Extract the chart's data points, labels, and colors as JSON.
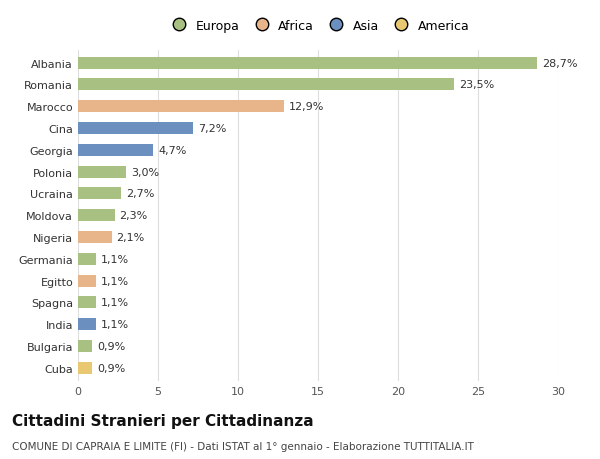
{
  "countries": [
    "Albania",
    "Romania",
    "Marocco",
    "Cina",
    "Georgia",
    "Polonia",
    "Ucraina",
    "Moldova",
    "Nigeria",
    "Germania",
    "Egitto",
    "Spagna",
    "India",
    "Bulgaria",
    "Cuba"
  ],
  "values": [
    28.7,
    23.5,
    12.9,
    7.2,
    4.7,
    3.0,
    2.7,
    2.3,
    2.1,
    1.1,
    1.1,
    1.1,
    1.1,
    0.9,
    0.9
  ],
  "labels": [
    "28,7%",
    "23,5%",
    "12,9%",
    "7,2%",
    "4,7%",
    "3,0%",
    "2,7%",
    "2,3%",
    "2,1%",
    "1,1%",
    "1,1%",
    "1,1%",
    "1,1%",
    "0,9%",
    "0,9%"
  ],
  "colors": [
    "#a8c182",
    "#a8c182",
    "#e8b48a",
    "#6b8fbf",
    "#6b8fbf",
    "#a8c182",
    "#a8c182",
    "#a8c182",
    "#e8b48a",
    "#a8c182",
    "#e8b48a",
    "#a8c182",
    "#6b8fbf",
    "#a8c182",
    "#e8c870"
  ],
  "legend_labels": [
    "Europa",
    "Africa",
    "Asia",
    "America"
  ],
  "legend_colors": [
    "#a8c182",
    "#e8b48a",
    "#6b8fbf",
    "#e8c870"
  ],
  "title": "Cittadini Stranieri per Cittadinanza",
  "subtitle": "COMUNE DI CAPRAIA E LIMITE (FI) - Dati ISTAT al 1° gennaio - Elaborazione TUTTITALIA.IT",
  "xlim": [
    0,
    30
  ],
  "xticks": [
    0,
    5,
    10,
    15,
    20,
    25,
    30
  ],
  "background_color": "#ffffff",
  "grid_color": "#dddddd",
  "bar_height": 0.55,
  "label_fontsize": 8,
  "tick_fontsize": 8,
  "title_fontsize": 11,
  "subtitle_fontsize": 7.5
}
